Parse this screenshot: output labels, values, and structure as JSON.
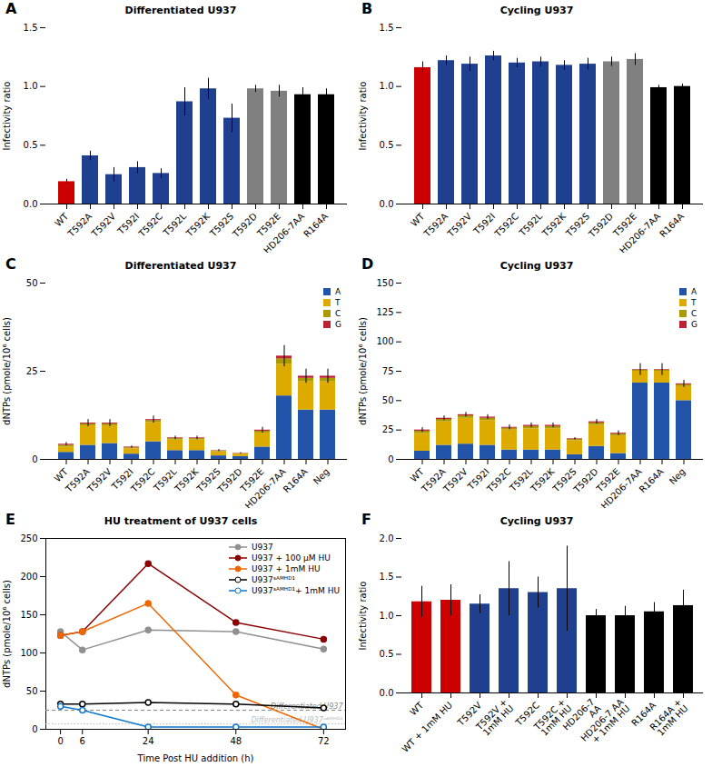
{
  "chart_data": [
    {
      "type": "bar",
      "panel_label": "A",
      "title": "Differentiated U937",
      "ylabel": "Infectivity ratio",
      "categories": [
        "WT",
        "T592A",
        "T592V",
        "T592I",
        "T592C",
        "T592L",
        "T592K",
        "T592S",
        "T592D",
        "T592E",
        "HD206-7AA",
        "R164A"
      ],
      "values": [
        0.19,
        0.41,
        0.25,
        0.31,
        0.26,
        0.87,
        0.98,
        0.73,
        0.98,
        0.96,
        0.93,
        0.93
      ],
      "errors": [
        0.02,
        0.04,
        0.06,
        0.05,
        0.04,
        0.12,
        0.09,
        0.12,
        0.03,
        0.05,
        0.06,
        0.05
      ],
      "colors": [
        "#cc0000",
        "#1f3f8f",
        "#1f3f8f",
        "#1f3f8f",
        "#1f3f8f",
        "#1f3f8f",
        "#1f3f8f",
        "#1f3f8f",
        "#808080",
        "#808080",
        "#000000",
        "#000000"
      ],
      "ylim": [
        0.0,
        1.5
      ],
      "yticks": [
        {
          "value": 0.0,
          "label": "0.0"
        },
        {
          "value": 0.5,
          "label": "0.5"
        },
        {
          "value": 1.0,
          "label": "1.0"
        },
        {
          "value": 1.5,
          "label": "1.5"
        }
      ]
    },
    {
      "type": "bar",
      "panel_label": "B",
      "title": "Cycling U937",
      "ylabel": "Infectivity ratio",
      "categories": [
        "WT",
        "T592A",
        "T592V",
        "T592I",
        "T592C",
        "T592L",
        "T592K",
        "T592S",
        "T592D",
        "T592E",
        "HD206-7AA",
        "R164A"
      ],
      "values": [
        1.16,
        1.22,
        1.19,
        1.26,
        1.2,
        1.21,
        1.18,
        1.19,
        1.21,
        1.23,
        0.99,
        1.0
      ],
      "errors": [
        0.05,
        0.04,
        0.06,
        0.04,
        0.04,
        0.04,
        0.04,
        0.05,
        0.04,
        0.05,
        0.02,
        0.02
      ],
      "colors": [
        "#cc0000",
        "#1f3f8f",
        "#1f3f8f",
        "#1f3f8f",
        "#1f3f8f",
        "#1f3f8f",
        "#1f3f8f",
        "#1f3f8f",
        "#808080",
        "#808080",
        "#000000",
        "#000000"
      ],
      "ylim": [
        0.0,
        1.5
      ],
      "yticks": [
        {
          "value": 0.0,
          "label": "0.0"
        },
        {
          "value": 0.5,
          "label": "0.5"
        },
        {
          "value": 1.0,
          "label": "1.0"
        },
        {
          "value": 1.5,
          "label": "1.5"
        }
      ]
    },
    {
      "type": "bar",
      "stacked": true,
      "panel_label": "C",
      "title": "Differentiated U937",
      "ylabel": "dNTPs (pmole/10⁶ cells)",
      "categories": [
        "WT",
        "T592A",
        "T592V",
        "T592I",
        "T592C",
        "T592L",
        "T592K",
        "T592S",
        "T592D",
        "T592E",
        "HD206-7AA",
        "R164A",
        "Neg"
      ],
      "series": [
        {
          "name": "A",
          "color": "#2255aa",
          "values": [
            2.0,
            4.0,
            4.5,
            1.5,
            5.0,
            2.5,
            2.5,
            1.0,
            0.8,
            3.5,
            18.0,
            14.0,
            14.0
          ]
        },
        {
          "name": "T",
          "color": "#ddaa00",
          "values": [
            1.5,
            5.5,
            5.0,
            1.5,
            5.5,
            3.0,
            3.0,
            1.2,
            0.7,
            4.0,
            9.0,
            8.0,
            8.0
          ]
        },
        {
          "name": "C",
          "color": "#aa9900",
          "values": [
            0.5,
            0.5,
            0.5,
            0.3,
            0.5,
            0.4,
            0.4,
            0.2,
            0.1,
            0.5,
            1.5,
            1.0,
            1.0
          ]
        },
        {
          "name": "G",
          "color": "#bb2233",
          "values": [
            0.3,
            0.3,
            0.3,
            0.2,
            0.3,
            0.2,
            0.2,
            0.1,
            0.1,
            0.3,
            0.8,
            0.6,
            0.6
          ]
        }
      ],
      "errors": [
        0.5,
        1.0,
        1.0,
        0.3,
        1.0,
        0.5,
        0.5,
        0.3,
        0.2,
        0.8,
        3.0,
        2.0,
        2.0
      ],
      "ylim": [
        0,
        50
      ],
      "yticks": [
        0,
        25,
        50
      ],
      "legend": "upper right"
    },
    {
      "type": "bar",
      "stacked": true,
      "panel_label": "D",
      "title": "Cycling U937",
      "ylabel": "dNTPs (pmole/10⁶ cells)",
      "categories": [
        "WT",
        "T592A",
        "T592V",
        "T592I",
        "T592C",
        "T592L",
        "T592K",
        "T592S",
        "T592D",
        "T592E",
        "HD206-7AA",
        "R164A",
        "Neg"
      ],
      "series": [
        {
          "name": "A",
          "color": "#2255aa",
          "values": [
            7,
            12,
            13,
            12,
            8,
            8,
            8,
            4,
            11,
            5,
            65,
            65,
            50
          ]
        },
        {
          "name": "T",
          "color": "#ddaa00",
          "values": [
            15,
            20,
            22,
            21,
            17,
            18,
            18,
            12,
            18,
            15,
            10,
            10,
            12
          ]
        },
        {
          "name": "C",
          "color": "#aa9900",
          "values": [
            2,
            2,
            2,
            2,
            1.5,
            2,
            2,
            1,
            2,
            1.5,
            1,
            1,
            1.5
          ]
        },
        {
          "name": "G",
          "color": "#bb2233",
          "values": [
            1,
            1,
            1,
            1,
            0.8,
            1,
            1,
            0.5,
            1,
            0.8,
            0.5,
            0.5,
            0.8
          ]
        }
      ],
      "errors": [
        2,
        2,
        2,
        2,
        2,
        2,
        2,
        1,
        2,
        2,
        5,
        5,
        3
      ],
      "ylim": [
        0,
        150
      ],
      "yticks": [
        0,
        25,
        50,
        75,
        100,
        125,
        150
      ],
      "legend": "upper right"
    },
    {
      "type": "line",
      "panel_label": "E",
      "title": "HU treatment of U937 cells",
      "xlabel": "Time Post HU addition (h)",
      "ylabel": "dNTPs (pmole/10⁶ cells)",
      "x": [
        0,
        6,
        24,
        48,
        72
      ],
      "series": [
        {
          "name": "U937",
          "color": "#909090",
          "marker": "circle",
          "values": [
            128,
            104,
            130,
            128,
            105
          ]
        },
        {
          "name": "U937 + 100 μM HU",
          "color": "#880000",
          "marker": "circle",
          "values": [
            123,
            128,
            217,
            140,
            118
          ]
        },
        {
          "name": "U937 + 1mM HU",
          "color": "#ee6600",
          "marker": "circle",
          "values": [
            123,
            128,
            165,
            45,
            0
          ]
        },
        {
          "name": "U937ˢᴬᴹᴴᴰ¹",
          "color": "#000000",
          "marker": "open circle",
          "values": [
            33,
            33,
            35,
            33,
            28
          ]
        },
        {
          "name": "U937ˢᴬᴹᴴᴰ¹+ 1mM HU",
          "color": "#1177cc",
          "marker": "open circle",
          "values": [
            30,
            25,
            3,
            3,
            3
          ]
        }
      ],
      "reference_lines": [
        {
          "value": 25,
          "label": "Differentiated U937",
          "color": "#888888",
          "line_style": "dashed"
        },
        {
          "value": 7,
          "label": "Differentiated U937ˢᴬᴹᴴᴰ¹",
          "color": "#bbbbbb",
          "line_style": "dotted"
        }
      ],
      "xlim": [
        -4,
        78
      ],
      "xticks": [
        0,
        6,
        24,
        48,
        72
      ],
      "ylim": [
        0,
        250
      ],
      "yticks": [
        0,
        50,
        100,
        150,
        200,
        250
      ],
      "legend": "upper right"
    },
    {
      "type": "bar",
      "panel_label": "F",
      "title": "Cycling U937",
      "ylabel": "Infectivity ratio",
      "categories": [
        "WT",
        "WT + 1mM HU",
        "T592V",
        "T592V +\n1mM HU",
        "T592C",
        "T592C +\n1mM HU",
        "HD206-7\nAA",
        "HD206-7 AA\n+ 1mM HU",
        "R164A",
        "R164A +\n1mM HU"
      ],
      "values": [
        1.18,
        1.2,
        1.15,
        1.35,
        1.3,
        1.35,
        1.0,
        1.0,
        1.05,
        1.13
      ],
      "errors": [
        0.2,
        0.2,
        0.12,
        0.35,
        0.2,
        0.55,
        0.08,
        0.12,
        0.12,
        0.2
      ],
      "colors": [
        "#cc0000",
        "#cc0000",
        "#1f3f8f",
        "#1f3f8f",
        "#1f3f8f",
        "#1f3f8f",
        "#000000",
        "#000000",
        "#000000",
        "#000000"
      ],
      "ylim": [
        0.0,
        2.0
      ],
      "yticks": [
        {
          "value": 0.0,
          "label": "0.0"
        },
        {
          "value": 0.5,
          "label": "0.5"
        },
        {
          "value": 1.0,
          "label": "1.0"
        },
        {
          "value": 1.5,
          "label": "1.5"
        },
        {
          "value": 2.0,
          "label": "2.0"
        }
      ]
    }
  ]
}
